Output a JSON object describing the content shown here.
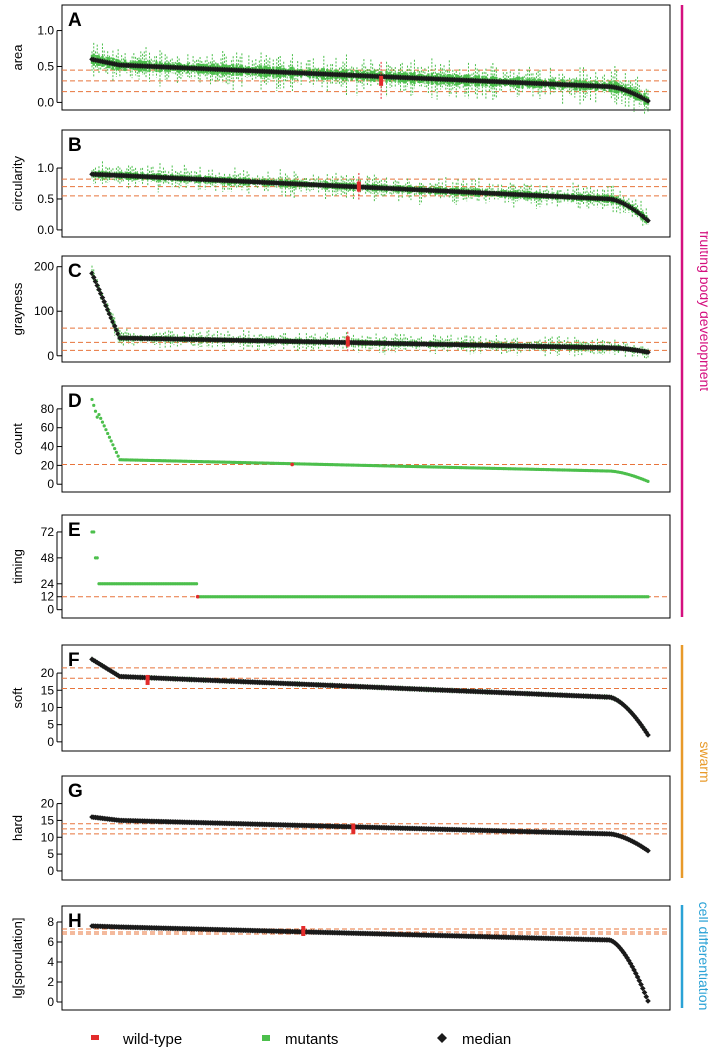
{
  "colors": {
    "wildtype": "#e32b2b",
    "mutant": "#4cbf4c",
    "median": "#1a1a1a",
    "refline": "#e8743b",
    "fruiting": "#d4107f",
    "swarm": "#e89a2a",
    "celldiff": "#2aa2d6"
  },
  "groups": [
    {
      "label": "fruiting body development",
      "panels": [
        "A",
        "B",
        "C",
        "D",
        "E"
      ]
    },
    {
      "label": "swarm",
      "panels": [
        "F",
        "G"
      ]
    },
    {
      "label": "cell differentiation",
      "panels": [
        "H"
      ]
    }
  ],
  "legend": [
    {
      "label": "wild-type",
      "marker": "red-bar"
    },
    {
      "label": "mutants",
      "marker": "green-square"
    },
    {
      "label": "median",
      "marker": "black-diamond"
    }
  ],
  "chart_data": [
    {
      "panel": "A",
      "type": "scatter",
      "ylabel": "area",
      "ylim": [
        -0.05,
        1.3
      ],
      "yticks": [
        0.0,
        0.5,
        1.0
      ],
      "yticklabels": [
        "0.0",
        "0.5",
        "1.0"
      ],
      "refs": [
        0.15,
        0.3,
        0.45
      ],
      "median_start": 0.6,
      "median_plateau": [
        0.52,
        0.22
      ],
      "median_end": 0.02,
      "n_mutants": 320,
      "spread": 0.12,
      "wildtype_x": 0.52,
      "wildtype_value": 0.3
    },
    {
      "panel": "B",
      "type": "scatter",
      "ylabel": "circularity",
      "ylim": [
        -0.05,
        1.55
      ],
      "yticks": [
        0.0,
        0.5,
        1.0
      ],
      "yticklabels": [
        "0.0",
        "0.5",
        "1.0"
      ],
      "refs": [
        0.55,
        0.7,
        0.82
      ],
      "median_start": 0.9,
      "median_plateau": [
        0.88,
        0.5
      ],
      "median_end": 0.15,
      "n_mutants": 320,
      "spread": 0.1,
      "wildtype_x": 0.48,
      "wildtype_value": 0.7
    },
    {
      "panel": "C",
      "type": "scatter",
      "ylabel": "grayness",
      "ylim": [
        -5,
        215
      ],
      "yticks": [
        0,
        100,
        200
      ],
      "yticklabels": [
        "0",
        "100",
        "200"
      ],
      "refs": [
        12,
        30,
        62
      ],
      "median_start": 185,
      "median_plateau": [
        40,
        18
      ],
      "median_end": 8,
      "n_mutants": 320,
      "spread": 10,
      "wildtype_x": 0.46,
      "wildtype_value": 32
    },
    {
      "panel": "D",
      "type": "scatter",
      "ylabel": "count",
      "ylim": [
        -4,
        100
      ],
      "yticks": [
        0,
        20,
        40,
        60,
        80
      ],
      "yticklabels": [
        "0",
        "20",
        "40",
        "60",
        "80"
      ],
      "refs": [
        21
      ],
      "median_start": 90,
      "median_plateau": [
        26,
        14
      ],
      "median_end": 3,
      "n_mutants": 320,
      "spread": 0,
      "wildtype_x": 0.36,
      "wildtype_value": 21
    },
    {
      "panel": "E",
      "type": "scatter",
      "ylabel": "timing",
      "ylim": [
        -4,
        84
      ],
      "yticks": [
        0,
        12,
        24,
        48,
        72
      ],
      "yticklabels": [
        "0",
        "12",
        "24",
        "48",
        "72"
      ],
      "refs": [
        12
      ],
      "median_start": 72,
      "median_plateau": [
        24,
        12
      ],
      "median_end": 12,
      "n_mutants": 320,
      "spread": 0,
      "wildtype_x": 0.19,
      "wildtype_value": 12
    },
    {
      "panel": "F",
      "type": "scatter",
      "ylabel": "soft",
      "ylim": [
        -1.5,
        27
      ],
      "yticks": [
        0,
        5,
        10,
        15,
        20
      ],
      "yticklabels": [
        "0",
        "5",
        "10",
        "15",
        "20"
      ],
      "refs": [
        15.5,
        18.5,
        21.5
      ],
      "median_start": 24,
      "median_plateau": [
        19,
        13
      ],
      "median_end": 2,
      "n_mutants": 320,
      "spread": 0.4,
      "wildtype_x": 0.1,
      "wildtype_value": 18
    },
    {
      "panel": "G",
      "type": "scatter",
      "ylabel": "hard",
      "ylim": [
        -1.5,
        27
      ],
      "yticks": [
        0,
        5,
        10,
        15,
        20
      ],
      "yticklabels": [
        "0",
        "5",
        "10",
        "15",
        "20"
      ],
      "refs": [
        11,
        12.5,
        14
      ],
      "median_start": 16,
      "median_plateau": [
        15,
        11
      ],
      "median_end": 6,
      "n_mutants": 320,
      "spread": 0.3,
      "wildtype_x": 0.47,
      "wildtype_value": 12.5
    },
    {
      "panel": "H",
      "type": "scatter",
      "ylabel": "lg[sporulation]",
      "ylim": [
        -0.4,
        9.2
      ],
      "yticks": [
        0,
        2,
        4,
        6,
        8
      ],
      "yticklabels": [
        "0",
        "2",
        "4",
        "6",
        "8"
      ],
      "refs": [
        6.8,
        7.0,
        7.3
      ],
      "median_start": 7.6,
      "median_plateau": [
        7.5,
        6.2
      ],
      "median_end": 0.1,
      "n_mutants": 320,
      "spread": 0.1,
      "wildtype_x": 0.38,
      "wildtype_value": 7.1
    }
  ]
}
